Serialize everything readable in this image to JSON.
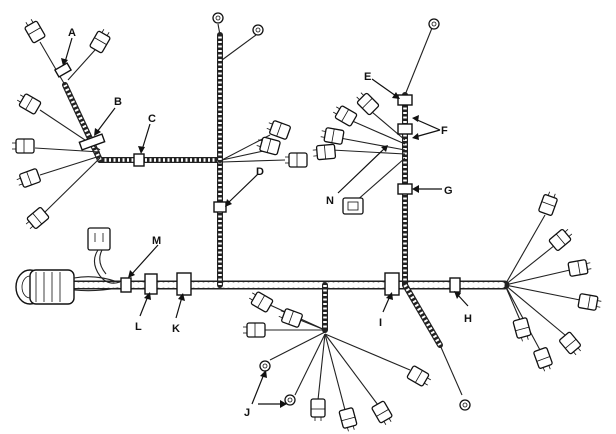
{
  "callouts": {
    "A": "A",
    "B": "B",
    "C": "C",
    "D": "D",
    "E": "E",
    "F": "F",
    "G": "G",
    "H": "H",
    "I": "I",
    "J": "J",
    "K": "K",
    "L": "L",
    "M": "M",
    "N": "N"
  }
}
